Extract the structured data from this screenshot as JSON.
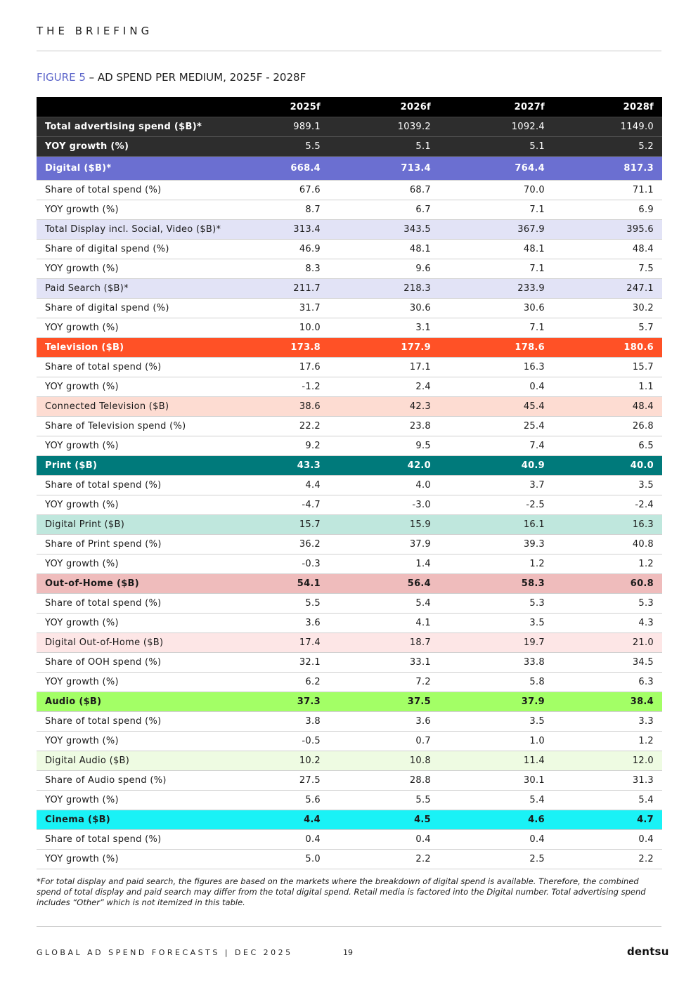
{
  "header": {
    "title": "THE BRIEFING"
  },
  "figure": {
    "label": "FIGURE 5",
    "title": " – AD SPEND PER MEDIUM, 2025F - 2028F"
  },
  "table": {
    "columns": [
      "",
      "2025f",
      "2026f",
      "2027f",
      "2028f"
    ],
    "rows": [
      {
        "style": "total",
        "label": "Total advertising spend ($B)*",
        "values": [
          "989.1",
          "1039.2",
          "1092.4",
          "1149.0"
        ]
      },
      {
        "style": "total",
        "label": "YOY growth (%)",
        "values": [
          "5.5",
          "5.1",
          "5.1",
          "5.2"
        ]
      },
      {
        "style": "digital",
        "label": "Digital ($B)*",
        "values": [
          "668.4",
          "713.4",
          "764.4",
          "817.3"
        ]
      },
      {
        "style": "plain",
        "label": "Share of total spend (%)",
        "values": [
          "67.6",
          "68.7",
          "70.0",
          "71.1"
        ]
      },
      {
        "style": "plain",
        "label": "YOY growth (%)",
        "values": [
          "8.7",
          "6.7",
          "7.1",
          "6.9"
        ]
      },
      {
        "style": "lav",
        "label": "Total Display incl. Social, Video ($B)*",
        "values": [
          "313.4",
          "343.5",
          "367.9",
          "395.6"
        ]
      },
      {
        "style": "plain",
        "label": "Share of digital spend (%)",
        "values": [
          "46.9",
          "48.1",
          "48.1",
          "48.4"
        ]
      },
      {
        "style": "plain",
        "label": "YOY growth (%)",
        "values": [
          "8.3",
          "9.6",
          "7.1",
          "7.5"
        ]
      },
      {
        "style": "lav",
        "label": "Paid Search ($B)*",
        "values": [
          "211.7",
          "218.3",
          "233.9",
          "247.1"
        ]
      },
      {
        "style": "plain",
        "label": "Share of digital spend (%)",
        "values": [
          "31.7",
          "30.6",
          "30.6",
          "30.2"
        ]
      },
      {
        "style": "plain",
        "label": "YOY growth (%)",
        "values": [
          "10.0",
          "3.1",
          "7.1",
          "5.7"
        ]
      },
      {
        "style": "tv",
        "label": "Television ($B)",
        "values": [
          "173.8",
          "177.9",
          "178.6",
          "180.6"
        ]
      },
      {
        "style": "plain",
        "label": "Share of total spend (%)",
        "values": [
          "17.6",
          "17.1",
          "16.3",
          "15.7"
        ]
      },
      {
        "style": "plain",
        "label": "YOY growth (%)",
        "values": [
          "-1.2",
          "2.4",
          "0.4",
          "1.1"
        ]
      },
      {
        "style": "tvsub",
        "label": "Connected Television ($B)",
        "values": [
          "38.6",
          "42.3",
          "45.4",
          "48.4"
        ]
      },
      {
        "style": "plain",
        "label": "Share of Television spend (%)",
        "values": [
          "22.2",
          "23.8",
          "25.4",
          "26.8"
        ]
      },
      {
        "style": "plain",
        "label": "YOY growth (%)",
        "values": [
          "9.2",
          "9.5",
          "7.4",
          "6.5"
        ]
      },
      {
        "style": "print",
        "label": "Print ($B)",
        "values": [
          "43.3",
          "42.0",
          "40.9",
          "40.0"
        ]
      },
      {
        "style": "plain",
        "label": "Share of total spend (%)",
        "values": [
          "4.4",
          "4.0",
          "3.7",
          "3.5"
        ]
      },
      {
        "style": "plain",
        "label": "YOY growth (%)",
        "values": [
          "-4.7",
          "-3.0",
          "-2.5",
          "-2.4"
        ]
      },
      {
        "style": "printsub",
        "label": "Digital Print ($B)",
        "values": [
          "15.7",
          "15.9",
          "16.1",
          "16.3"
        ]
      },
      {
        "style": "plain",
        "label": "Share of Print spend (%)",
        "values": [
          "36.2",
          "37.9",
          "39.3",
          "40.8"
        ]
      },
      {
        "style": "plain",
        "label": "YOY growth (%)",
        "values": [
          "-0.3",
          "1.4",
          "1.2",
          "1.2"
        ]
      },
      {
        "style": "ooh",
        "label": "Out-of-Home ($B)",
        "values": [
          "54.1",
          "56.4",
          "58.3",
          "60.8"
        ]
      },
      {
        "style": "plain",
        "label": "Share of total spend (%)",
        "values": [
          "5.5",
          "5.4",
          "5.3",
          "5.3"
        ]
      },
      {
        "style": "plain",
        "label": "YOY growth (%)",
        "values": [
          "3.6",
          "4.1",
          "3.5",
          "4.3"
        ]
      },
      {
        "style": "oohsub",
        "label": "Digital Out-of-Home ($B)",
        "values": [
          "17.4",
          "18.7",
          "19.7",
          "21.0"
        ]
      },
      {
        "style": "plain",
        "label": "Share of OOH spend (%)",
        "values": [
          "32.1",
          "33.1",
          "33.8",
          "34.5"
        ]
      },
      {
        "style": "plain",
        "label": "YOY growth (%)",
        "values": [
          "6.2",
          "7.2",
          "5.8",
          "6.3"
        ]
      },
      {
        "style": "audio",
        "label": "Audio ($B)",
        "values": [
          "37.3",
          "37.5",
          "37.9",
          "38.4"
        ]
      },
      {
        "style": "plain",
        "label": "Share of total spend (%)",
        "values": [
          "3.8",
          "3.6",
          "3.5",
          "3.3"
        ]
      },
      {
        "style": "plain",
        "label": "YOY growth (%)",
        "values": [
          "-0.5",
          "0.7",
          "1.0",
          "1.2"
        ]
      },
      {
        "style": "audiosub",
        "label": "Digital Audio ($B)",
        "values": [
          "10.2",
          "10.8",
          "11.4",
          "12.0"
        ]
      },
      {
        "style": "plain",
        "label": "Share of Audio spend (%)",
        "values": [
          "27.5",
          "28.8",
          "30.1",
          "31.3"
        ]
      },
      {
        "style": "plain",
        "label": "YOY growth (%)",
        "values": [
          "5.6",
          "5.5",
          "5.4",
          "5.4"
        ]
      },
      {
        "style": "cinema",
        "label": "Cinema ($B)",
        "values": [
          "4.4",
          "4.5",
          "4.6",
          "4.7"
        ]
      },
      {
        "style": "plain",
        "label": "Share of total spend (%)",
        "values": [
          "0.4",
          "0.4",
          "0.4",
          "0.4"
        ]
      },
      {
        "style": "plain",
        "label": "YOY growth (%)",
        "values": [
          "5.0",
          "2.2",
          "2.5",
          "2.2"
        ]
      }
    ]
  },
  "footnote": "*For total display and paid search, the figures are based on the markets where the breakdown of digital spend is available. Therefore, the combined spend of total display and paid search may differ from the total digital spend. Retail media is factored into the Digital number. Total advertising spend includes “Other” which is not itemized in this table.",
  "footer": {
    "left": "GLOBAL AD SPEND FORECASTS | DEC 2025",
    "page": "19",
    "logo": "dentsu"
  },
  "colors": {
    "figure_label": "#5b64c9",
    "header_row": "#000000",
    "total_rows": "#2d2d2d",
    "digital": "#6b6fd1",
    "digital_sub": "#e2e3f6",
    "television": "#ff5126",
    "television_sub": "#fddcd2",
    "print": "#007a7b",
    "print_sub": "#bfe7dd",
    "out_of_home": "#efbcbc",
    "out_of_home_sub": "#fde6e6",
    "audio": "#a3ff66",
    "audio_sub": "#eefbe2",
    "cinema": "#1af2f6"
  }
}
